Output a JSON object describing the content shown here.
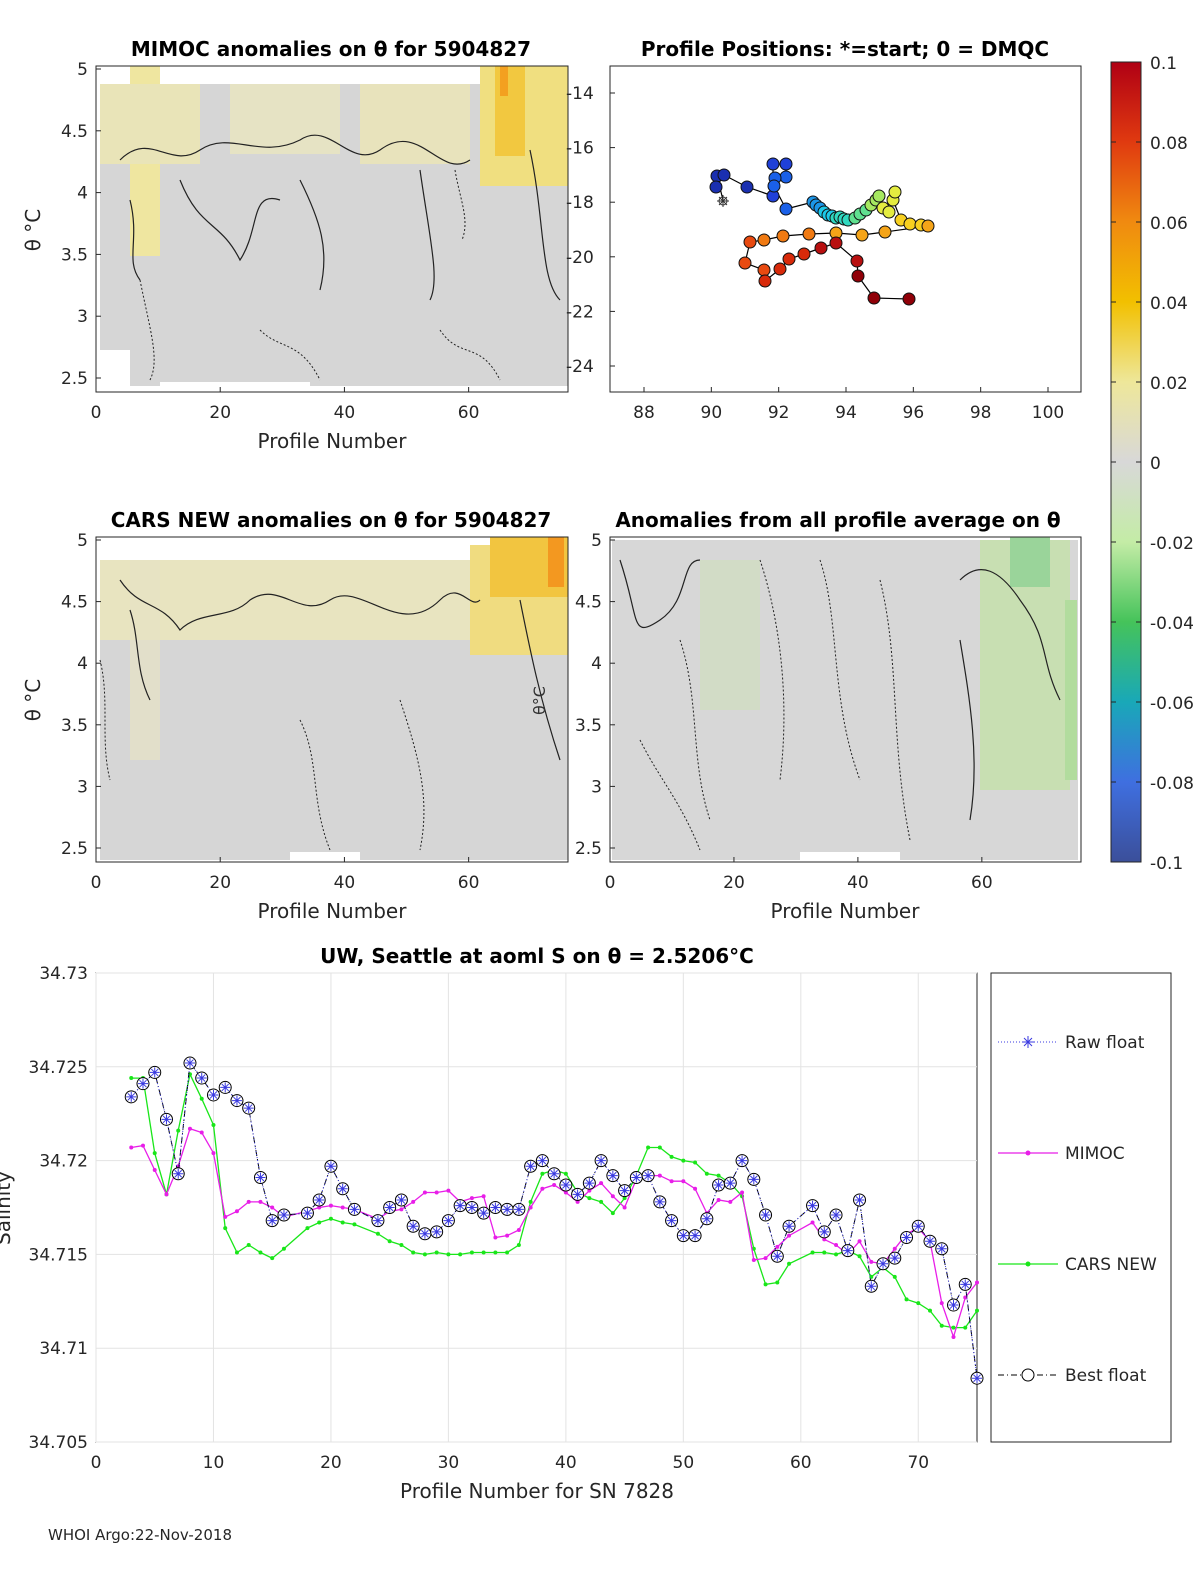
{
  "footer": "WHOI Argo:22-Nov-2018",
  "panels": {
    "mimoc": {
      "title": "MIMOC anomalies on θ  for 5904827",
      "xlabel": "Profile Number",
      "ylabel": "θ °C",
      "xticks": [
        "0",
        "20",
        "40",
        "60"
      ],
      "yticks": [
        "5",
        "4.5",
        "4",
        "3.5",
        "3",
        "2.5"
      ]
    },
    "positions": {
      "title": "Profile Positions: *=start; 0 = DMQC",
      "xticks": [
        "88",
        "90",
        "92",
        "94",
        "96",
        "98",
        "100"
      ],
      "yticks": [
        "-14",
        "-16",
        "-18",
        "-20",
        "-22",
        "-24"
      ]
    },
    "cars": {
      "title": "CARS NEW anomalies on θ for 5904827",
      "xlabel": "Profile Number",
      "ylabel": "θ °C",
      "xticks": [
        "0",
        "20",
        "40",
        "60"
      ],
      "yticks": [
        "5",
        "4.5",
        "4",
        "3.5",
        "3",
        "2.5"
      ],
      "contour_label": "θ°C"
    },
    "avg": {
      "title": "Anomalies from all profile average on θ",
      "xlabel": "Profile Number",
      "xticks": [
        "0",
        "20",
        "40",
        "60"
      ],
      "yticks": [
        "5",
        "4.5",
        "4",
        "3.5",
        "3",
        "2.5"
      ]
    },
    "colorbar": {
      "ticks": [
        "0.1",
        "0.08",
        "0.06",
        "0.04",
        "0.02",
        "0",
        "-0.02",
        "-0.04",
        "-0.06",
        "-0.08",
        "-0.1"
      ],
      "colors": [
        "#c4001a",
        "#e03a10",
        "#f07f10",
        "#f0b000",
        "#efe06a",
        "#d8d8d8",
        "#c6ecac",
        "#48c55a",
        "#19a8b8",
        "#3f6fe0",
        "#3b4f9a"
      ]
    }
  },
  "chart_data": {
    "type": "line",
    "title": "UW, Seattle at aoml S on θ = 2.5206°C",
    "xlabel": "Profile Number for SN 7828",
    "ylabel": "Salinity",
    "xlim": [
      0,
      75
    ],
    "ylim": [
      34.705,
      34.73
    ],
    "xticks": [
      "0",
      "10",
      "20",
      "30",
      "40",
      "50",
      "60",
      "70"
    ],
    "yticks": [
      "34.73",
      "34.725",
      "34.72",
      "34.715",
      "34.71",
      "34.705"
    ],
    "legend": [
      "Raw float",
      "MIMOC",
      "CARS NEW",
      "Best float"
    ],
    "series": [
      {
        "name": "Raw float",
        "color": "#3a3ae0",
        "x": [
          3,
          4,
          5,
          6,
          7,
          8,
          9,
          10,
          11,
          12,
          13,
          14,
          15,
          16,
          18,
          19,
          20,
          21,
          22,
          24,
          25,
          26,
          27,
          28,
          29,
          30,
          31,
          32,
          33,
          34,
          35,
          36,
          37,
          38,
          39,
          40,
          41,
          42,
          43,
          44,
          45,
          46,
          47,
          48,
          49,
          50,
          51,
          52,
          53,
          54,
          55,
          56,
          57,
          58,
          59,
          61,
          62,
          63,
          64,
          65,
          66,
          67,
          68,
          69,
          70,
          71,
          72,
          73,
          74,
          75
        ],
        "values": [
          34.7234,
          34.7241,
          34.7247,
          34.7222,
          34.7193,
          34.7252,
          34.7244,
          34.7235,
          34.7239,
          34.7232,
          34.7228,
          34.7191,
          34.7168,
          34.7171,
          34.7172,
          34.7179,
          34.7197,
          34.7185,
          34.7174,
          34.7168,
          34.7175,
          34.7179,
          34.7165,
          34.7161,
          34.7162,
          34.7168,
          34.7176,
          34.7175,
          34.7172,
          34.7175,
          34.7174,
          34.7174,
          34.7197,
          34.72,
          34.7193,
          34.7187,
          34.7182,
          34.7188,
          34.72,
          34.7192,
          34.7184,
          34.7191,
          34.7192,
          34.7178,
          34.7168,
          34.716,
          34.716,
          34.7169,
          34.7187,
          34.7188,
          34.72,
          34.719,
          34.7171,
          34.7149,
          34.7165,
          34.7176,
          34.7162,
          34.7171,
          34.7152,
          34.7179,
          34.7133,
          34.7145,
          34.7148,
          34.7159,
          34.7165,
          34.7157,
          34.7153,
          34.7123,
          34.7134,
          34.7084
        ]
      },
      {
        "name": "MIMOC",
        "color": "#e81ee8",
        "x": [
          3,
          4,
          5,
          6,
          7,
          8,
          9,
          10,
          11,
          12,
          13,
          14,
          15,
          16,
          18,
          19,
          20,
          21,
          22,
          24,
          25,
          26,
          27,
          28,
          29,
          30,
          31,
          32,
          33,
          34,
          35,
          36,
          37,
          38,
          39,
          40,
          41,
          42,
          43,
          44,
          45,
          46,
          47,
          48,
          49,
          50,
          51,
          52,
          53,
          54,
          55,
          56,
          57,
          58,
          59,
          61,
          62,
          63,
          64,
          65,
          66,
          67,
          68,
          69,
          70,
          71,
          72,
          73,
          74,
          75
        ],
        "values": [
          34.7207,
          34.7208,
          34.7195,
          34.7182,
          34.7197,
          34.7217,
          34.7215,
          34.7204,
          34.717,
          34.7173,
          34.7178,
          34.7178,
          34.7175,
          34.717,
          34.7173,
          34.7175,
          34.7176,
          34.7175,
          34.7174,
          34.7169,
          34.7173,
          34.7174,
          34.7178,
          34.7183,
          34.7183,
          34.7184,
          34.7178,
          34.718,
          34.7181,
          34.7159,
          34.716,
          34.7163,
          34.7175,
          34.7185,
          34.7187,
          34.7183,
          34.7178,
          34.7184,
          34.7188,
          34.7181,
          34.7175,
          34.719,
          34.7192,
          34.7192,
          34.7189,
          34.7189,
          34.7185,
          34.7172,
          34.7179,
          34.7178,
          34.7183,
          34.7147,
          34.7148,
          34.7154,
          34.716,
          34.7167,
          34.7158,
          34.7155,
          34.715,
          34.7157,
          34.7146,
          34.7145,
          34.7153,
          34.7161,
          34.7164,
          34.7157,
          34.7124,
          34.7106,
          34.7127,
          34.7135
        ]
      },
      {
        "name": "CARS NEW",
        "color": "#19e619",
        "x": [
          3,
          4,
          5,
          6,
          7,
          8,
          9,
          10,
          11,
          12,
          13,
          14,
          15,
          16,
          18,
          19,
          20,
          21,
          22,
          24,
          25,
          26,
          27,
          28,
          29,
          30,
          31,
          32,
          33,
          34,
          35,
          36,
          37,
          38,
          39,
          40,
          41,
          42,
          43,
          44,
          45,
          46,
          47,
          48,
          49,
          50,
          51,
          52,
          53,
          54,
          55,
          56,
          57,
          58,
          59,
          61,
          62,
          63,
          64,
          65,
          66,
          67,
          68,
          69,
          70,
          71,
          72,
          73,
          74,
          75
        ],
        "values": [
          34.7244,
          34.7244,
          34.7204,
          34.7182,
          34.7216,
          34.7246,
          34.7233,
          34.7219,
          34.7164,
          34.7151,
          34.7155,
          34.7151,
          34.7148,
          34.7153,
          34.7164,
          34.7167,
          34.7169,
          34.7167,
          34.7166,
          34.7161,
          34.7157,
          34.7155,
          34.7151,
          34.715,
          34.7151,
          34.715,
          34.715,
          34.7151,
          34.7151,
          34.7151,
          34.7151,
          34.7155,
          34.7178,
          34.7193,
          34.7195,
          34.7193,
          34.7183,
          34.718,
          34.7178,
          34.7172,
          34.718,
          34.7192,
          34.7207,
          34.7207,
          34.7202,
          34.72,
          34.7199,
          34.7193,
          34.7192,
          34.7188,
          34.7181,
          34.7153,
          34.7134,
          34.7135,
          34.7145,
          34.7151,
          34.7151,
          34.715,
          34.7152,
          34.7149,
          34.7138,
          34.7143,
          34.7138,
          34.7126,
          34.7124,
          34.712,
          34.7112,
          34.7111,
          34.7111,
          34.712
        ]
      },
      {
        "name": "Best float",
        "color": "#000000",
        "x": [
          3,
          4,
          5,
          6,
          7,
          8,
          9,
          10,
          11,
          12,
          13,
          14,
          15,
          16,
          18,
          19,
          20,
          21,
          22,
          24,
          25,
          26,
          27,
          28,
          29,
          30,
          31,
          32,
          33,
          34,
          35,
          36,
          37,
          38,
          39,
          40,
          41,
          42,
          43,
          44,
          45,
          46,
          47,
          48,
          49,
          50,
          51,
          52,
          53,
          54,
          55,
          56,
          57,
          58,
          59,
          61,
          62,
          63,
          64,
          65,
          66,
          67,
          68,
          69,
          70,
          71,
          72,
          73,
          74,
          75
        ],
        "values": [
          34.7234,
          34.7241,
          34.7247,
          34.7222,
          34.7193,
          34.7252,
          34.7244,
          34.7235,
          34.7239,
          34.7232,
          34.7228,
          34.7191,
          34.7168,
          34.7171,
          34.7172,
          34.7179,
          34.7197,
          34.7185,
          34.7174,
          34.7168,
          34.7175,
          34.7179,
          34.7165,
          34.7161,
          34.7162,
          34.7168,
          34.7176,
          34.7175,
          34.7172,
          34.7175,
          34.7174,
          34.7174,
          34.7197,
          34.72,
          34.7193,
          34.7187,
          34.7182,
          34.7188,
          34.72,
          34.7192,
          34.7184,
          34.7191,
          34.7192,
          34.7178,
          34.7168,
          34.716,
          34.716,
          34.7169,
          34.7187,
          34.7188,
          34.72,
          34.719,
          34.7171,
          34.7149,
          34.7165,
          34.7176,
          34.7162,
          34.7171,
          34.7152,
          34.7179,
          34.7133,
          34.7145,
          34.7148,
          34.7159,
          34.7165,
          34.7157,
          34.7153,
          34.7123,
          34.7134,
          34.7084
        ]
      }
    ]
  }
}
